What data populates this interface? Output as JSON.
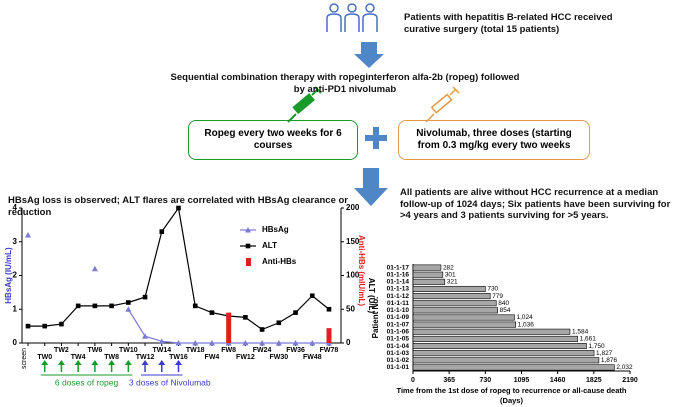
{
  "diagram": {
    "patients": "Patients with hepatitis B-related HCC received curative surgery (total 15 patients)",
    "therapy": "Sequential combination therapy with ropeginterferon alfa-2b (ropeg) followed by anti-PD1 nivolumab",
    "ropeg_box": "Ropeg every two weeks for 6 courses",
    "nivo_box": "Nivolumab, three doses (starting from 0.3 mg/kg every two weeks",
    "left_finding": "HBsAg loss is observed; ALT flares are correlated with HBsAg clearance or reduction",
    "right_finding": "All patients are alive without HCC recurrence at a median follow-up of 1024 days; Six patients have been surviving for >4 years and 3 patients surviving for >5 years.",
    "ropeg_doses": "6 doses of ropeg",
    "nivo_doses": "3 doses of Nivolumab"
  },
  "chart_data": [
    {
      "type": "line",
      "categories": [
        "screen",
        "TW0",
        "TW2",
        "TW4",
        "TW6",
        "TW8",
        "TW10",
        "TW12",
        "TW14",
        "TW16",
        "TW18",
        "FW4",
        "FW8",
        "FW12",
        "FW24",
        "FW30",
        "FW36",
        "FW48",
        "FW78"
      ],
      "ylabel": "HBsAg (IU/mL)",
      "y2label": "ALT (U/L)",
      "y2label_extra": "Anti-HBs (mIU/mL)",
      "ylim": [
        0,
        4
      ],
      "yticks": [
        0,
        1,
        2,
        3,
        4
      ],
      "y2lim": [
        0,
        200
      ],
      "y2ticks": [
        0,
        50,
        100,
        150,
        200
      ],
      "legend": "upper right",
      "series": [
        {
          "name": "HBsAg",
          "color": "#7b7bd6",
          "kind": "line",
          "marker": "triangle",
          "values": [
            3.2,
            null,
            null,
            null,
            2.2,
            null,
            1.0,
            0.2,
            0.05,
            0,
            0,
            0,
            0,
            0,
            0,
            0,
            0,
            0,
            0
          ]
        },
        {
          "name": "ALT",
          "color": "#000000",
          "kind": "line",
          "marker": "square",
          "axis": "y2",
          "values": [
            25,
            25,
            28,
            55,
            55,
            55,
            60,
            68,
            165,
            200,
            55,
            45,
            40,
            38,
            20,
            30,
            45,
            70,
            50
          ]
        },
        {
          "name": "Anti-HBs",
          "color": "#e02020",
          "kind": "bar",
          "axis": "y2",
          "values": [
            null,
            null,
            null,
            null,
            null,
            null,
            null,
            null,
            null,
            null,
            null,
            null,
            45,
            null,
            null,
            null,
            null,
            null,
            22
          ]
        }
      ]
    },
    {
      "type": "hbar",
      "categories": [
        "01-1-17",
        "01-1-16",
        "01-1-14",
        "01-1-13",
        "01-1-12",
        "01-1-11",
        "01-1-10",
        "01-1-09",
        "01-1-07",
        "01-1-06",
        "01-1-05",
        "01-1-04",
        "01-1-03",
        "01-1-02",
        "01-1-01"
      ],
      "values": [
        282,
        301,
        321,
        730,
        779,
        840,
        854,
        1024,
        1036,
        1584,
        1661,
        1750,
        1827,
        1876,
        2032
      ],
      "value_labels": [
        "282",
        "301",
        "321",
        "730",
        "779",
        "840",
        "854",
        "1,024",
        "1,036",
        "1,584",
        "1,661",
        "1,750",
        "1,827",
        "1,876",
        "2,032"
      ],
      "color": "#a6a6a6",
      "xlim": [
        0,
        2190
      ],
      "xticks": [
        0,
        365,
        730,
        1095,
        1460,
        1825,
        2190
      ],
      "ylabel": "Patient No.",
      "xlabel": "Time from the 1st dose of ropeg to recurrence or all-cause death",
      "xlabel_unit": "(Days)"
    }
  ]
}
